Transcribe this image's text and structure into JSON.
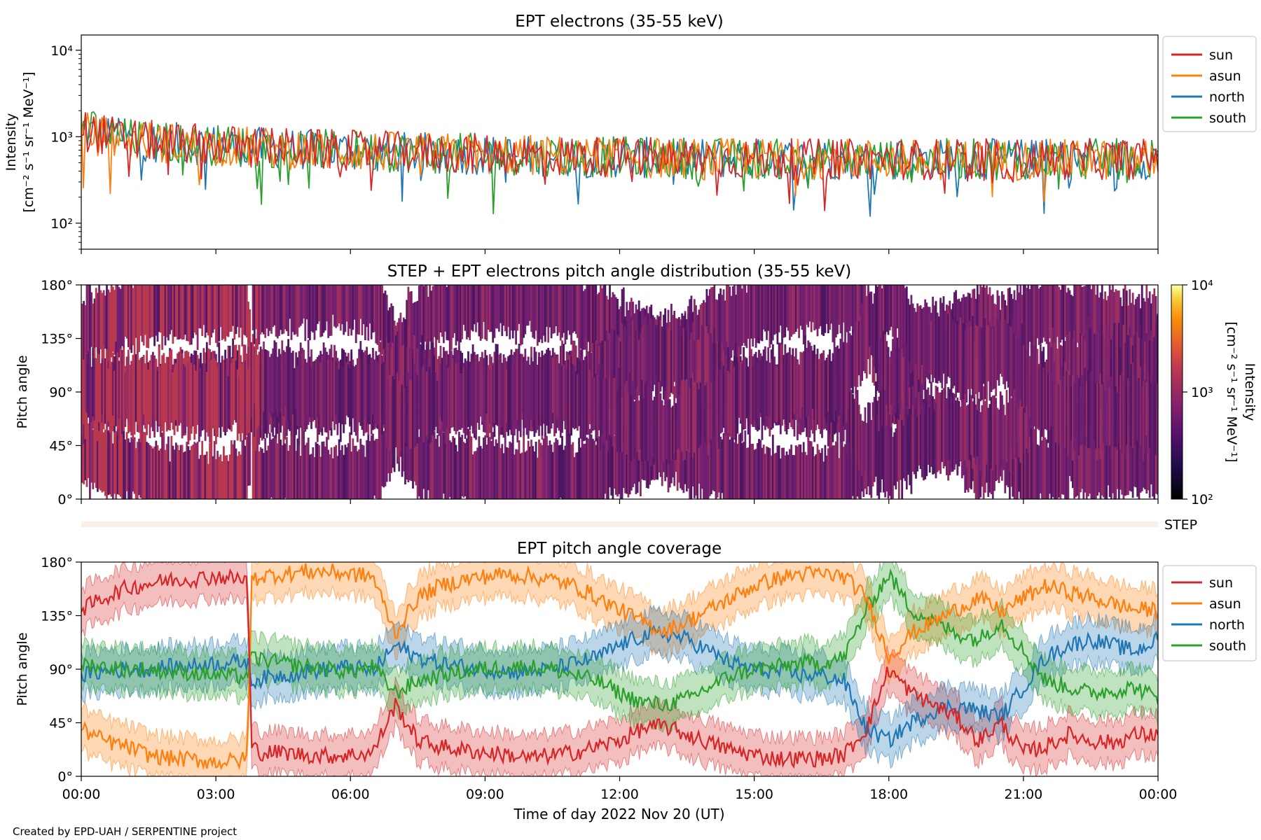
{
  "footer": "Created by EPD-UAH / SERPENTINE project",
  "xlabel": "Time of day 2022 Nov 20 (UT)",
  "time_ticks": [
    "00:00",
    "03:00",
    "06:00",
    "09:00",
    "12:00",
    "15:00",
    "18:00",
    "21:00",
    "00:00"
  ],
  "colors": {
    "sun": "#d62728",
    "asun": "#ff7f0e",
    "north": "#1f77b4",
    "south": "#2ca02c"
  },
  "chart_data": [
    {
      "type": "line",
      "title": "EPT electrons (35-55 keV)",
      "ylabel_lines": [
        "Intensity",
        "[cm⁻² s⁻¹ sr⁻¹ MeV⁻¹]"
      ],
      "yscale": "log",
      "ylim": [
        50,
        15000
      ],
      "ytick_labels": [
        "10²",
        "10³",
        "10⁴"
      ],
      "xlim_hours": [
        0,
        24
      ],
      "legend": {
        "placement": "outside-right",
        "entries": [
          "sun",
          "asun",
          "north",
          "south"
        ]
      },
      "x_hours": [
        0,
        0.5,
        1,
        1.5,
        2,
        2.5,
        3,
        3.5,
        4,
        4.5,
        5,
        5.5,
        6,
        6.5,
        7,
        7.5,
        8,
        8.5,
        9,
        9.5,
        10,
        10.5,
        11,
        11.5,
        12,
        12.5,
        13,
        13.5,
        14,
        14.5,
        15,
        15.5,
        16,
        16.5,
        17,
        17.5,
        18,
        18.5,
        19,
        19.5,
        20,
        20.5,
        21,
        21.5,
        22,
        22.5,
        23,
        23.5,
        24
      ],
      "series": [
        {
          "name": "sun",
          "values": [
            1200,
            1050,
            950,
            900,
            850,
            820,
            800,
            780,
            760,
            740,
            720,
            700,
            690,
            680,
            670,
            660,
            650,
            640,
            630,
            620,
            610,
            600,
            600,
            590,
            580,
            580,
            570,
            570,
            560,
            560,
            560,
            550,
            550,
            550,
            550,
            550,
            550,
            550,
            550,
            550,
            550,
            550,
            550,
            550,
            550,
            550,
            550,
            550,
            560
          ]
        },
        {
          "name": "asun",
          "values": [
            1150,
            1000,
            930,
            880,
            840,
            810,
            790,
            770,
            750,
            730,
            710,
            700,
            690,
            680,
            660,
            650,
            640,
            640,
            630,
            620,
            610,
            600,
            590,
            590,
            580,
            570,
            570,
            560,
            560,
            560,
            550,
            550,
            550,
            550,
            550,
            550,
            550,
            540,
            540,
            540,
            540,
            540,
            540,
            540,
            540,
            540,
            540,
            540,
            550
          ]
        },
        {
          "name": "north",
          "values": [
            1180,
            1030,
            940,
            890,
            850,
            820,
            800,
            780,
            750,
            730,
            710,
            700,
            690,
            670,
            660,
            650,
            640,
            630,
            620,
            610,
            600,
            600,
            590,
            580,
            580,
            570,
            570,
            560,
            560,
            560,
            550,
            550,
            550,
            550,
            550,
            550,
            550,
            550,
            550,
            550,
            550,
            550,
            550,
            550,
            550,
            550,
            550,
            550,
            560
          ]
        },
        {
          "name": "south",
          "values": [
            1250,
            1080,
            960,
            900,
            860,
            830,
            800,
            780,
            760,
            740,
            720,
            700,
            690,
            680,
            670,
            650,
            640,
            640,
            630,
            620,
            610,
            600,
            590,
            590,
            580,
            570,
            570,
            560,
            560,
            560,
            550,
            550,
            550,
            550,
            550,
            550,
            550,
            550,
            550,
            550,
            550,
            550,
            550,
            550,
            550,
            550,
            550,
            550,
            560
          ]
        }
      ]
    },
    {
      "type": "heatmap",
      "title": "STEP + EPT electrons pitch angle distribution (35-55 keV)",
      "ylabel": "Pitch angle",
      "ylim": [
        0,
        180
      ],
      "ytick_labels": [
        "0°",
        "45°",
        "90°",
        "135°",
        "180°"
      ],
      "xlim_hours": [
        0,
        24
      ],
      "colorbar": {
        "label_lines": [
          "Intensity",
          "[cm⁻² s⁻¹ sr⁻¹ MeV⁻¹]"
        ],
        "scale": "log",
        "range": [
          100,
          10000
        ],
        "tick_labels": [
          "10²",
          "10³",
          "10⁴"
        ],
        "colormap": "inferno"
      },
      "bands_description_hours": [
        0,
        24
      ]
    },
    {
      "type": "heatmap",
      "label": "STEP",
      "xlim_hours": [
        0,
        24
      ]
    },
    {
      "type": "line",
      "title": "EPT pitch angle coverage",
      "ylabel": "Pitch angle",
      "ylim": [
        0,
        180
      ],
      "ytick_labels": [
        "0°",
        "45°",
        "90°",
        "135°",
        "180°"
      ],
      "xlim_hours": [
        0,
        24
      ],
      "legend": {
        "placement": "outside-right",
        "entries": [
          "sun",
          "asun",
          "north",
          "south"
        ]
      },
      "x_hours": [
        0,
        0.5,
        1,
        1.5,
        2,
        2.5,
        3,
        3.5,
        3.7,
        3.8,
        4,
        4.5,
        5,
        5.5,
        6,
        6.5,
        7,
        7.5,
        8,
        8.5,
        9,
        9.5,
        10,
        10.5,
        11,
        11.5,
        12,
        12.5,
        13,
        13.5,
        14,
        14.5,
        15,
        15.5,
        16,
        16.5,
        17,
        17.5,
        18,
        18.5,
        19,
        19.5,
        20,
        20.5,
        21,
        21.5,
        22,
        22.5,
        23,
        23.5,
        24
      ],
      "series": [
        {
          "name": "sun",
          "values": [
            140,
            150,
            158,
            162,
            165,
            166,
            168,
            166,
            165,
            25,
            20,
            20,
            18,
            17,
            18,
            20,
            60,
            30,
            25,
            22,
            20,
            18,
            15,
            18,
            20,
            25,
            30,
            40,
            42,
            35,
            28,
            22,
            18,
            15,
            15,
            15,
            18,
            40,
            90,
            70,
            60,
            50,
            30,
            45,
            20,
            25,
            35,
            30,
            28,
            35,
            35
          ]
        },
        {
          "name": "asun",
          "values": [
            40,
            30,
            25,
            18,
            15,
            14,
            12,
            13,
            15,
            165,
            168,
            170,
            172,
            172,
            170,
            168,
            120,
            150,
            160,
            165,
            168,
            170,
            168,
            165,
            160,
            150,
            140,
            130,
            122,
            130,
            140,
            150,
            160,
            166,
            170,
            170,
            168,
            150,
            100,
            120,
            130,
            140,
            150,
            138,
            150,
            160,
            155,
            150,
            145,
            140,
            140
          ]
        },
        {
          "name": "north",
          "values": [
            85,
            88,
            90,
            90,
            92,
            93,
            95,
            96,
            96,
            80,
            82,
            85,
            88,
            90,
            92,
            88,
            110,
            100,
            95,
            92,
            90,
            88,
            88,
            90,
            95,
            100,
            110,
            118,
            120,
            115,
            105,
            95,
            90,
            88,
            85,
            85,
            80,
            40,
            30,
            45,
            55,
            60,
            55,
            50,
            75,
            100,
            110,
            115,
            110,
            105,
            115
          ]
        },
        {
          "name": "south",
          "values": [
            95,
            92,
            90,
            90,
            88,
            87,
            85,
            84,
            84,
            100,
            98,
            95,
            92,
            90,
            88,
            92,
            70,
            80,
            85,
            88,
            90,
            92,
            92,
            90,
            85,
            80,
            70,
            62,
            60,
            65,
            75,
            85,
            90,
            92,
            95,
            95,
            100,
            140,
            170,
            140,
            130,
            120,
            115,
            130,
            105,
            80,
            75,
            70,
            72,
            75,
            65
          ]
        }
      ]
    }
  ]
}
